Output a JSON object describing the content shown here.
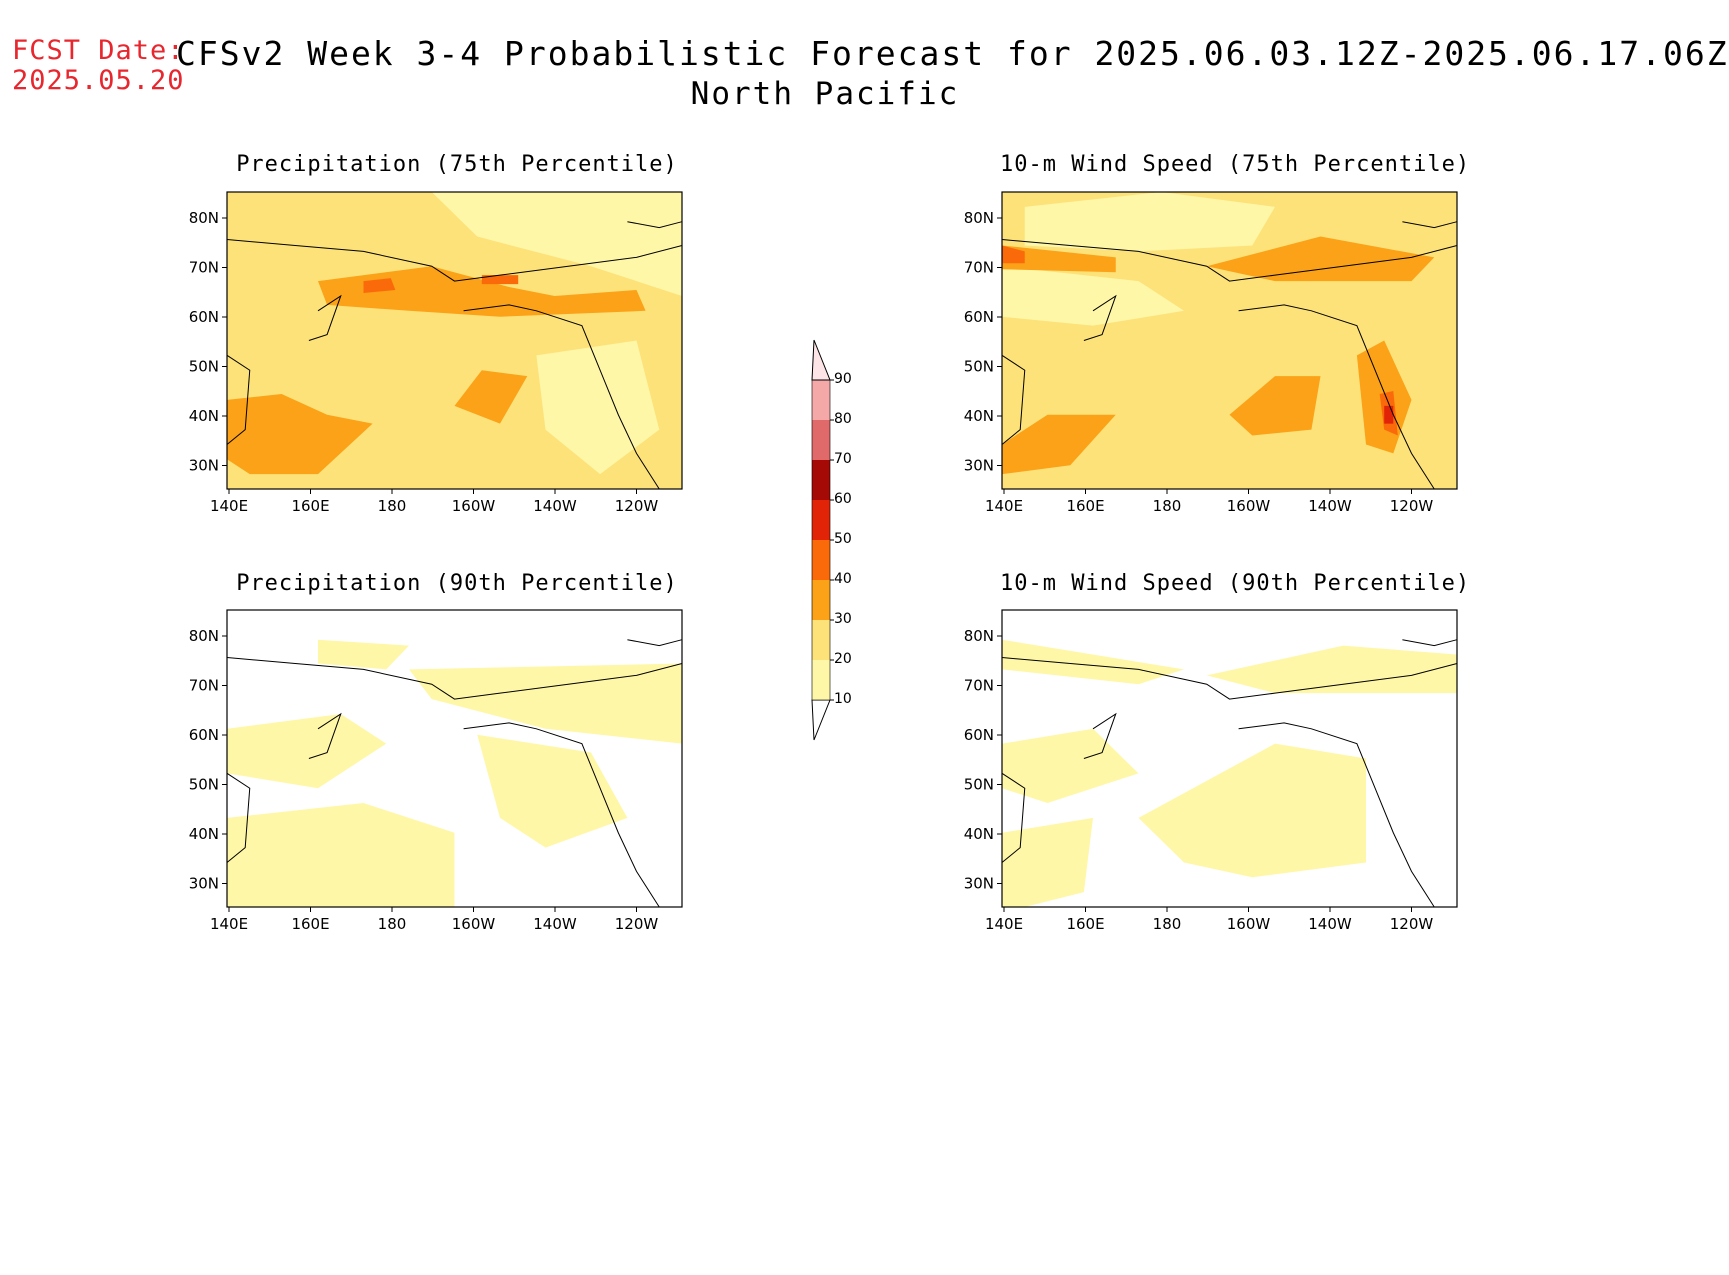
{
  "header": {
    "fcst_label": "FCST Date:",
    "fcst_date": "2025.05.20",
    "title": "CFSv2 Week 3-4 Probabilistic Forecast for 2025.06.03.12Z-2025.06.17.06Z",
    "region": "North Pacific"
  },
  "panels": [
    {
      "title": "Precipitation (75th Percentile)",
      "field": "precip75"
    },
    {
      "title": "10-m Wind Speed (75th Percentile)",
      "field": "wind75"
    },
    {
      "title": "Precipitation (90th Percentile)",
      "field": "precip90"
    },
    {
      "title": "10-m Wind Speed (90th Percentile)",
      "field": "wind90"
    }
  ],
  "axes": {
    "lat_labels": [
      "80N",
      "70N",
      "60N",
      "50N",
      "40N",
      "30N"
    ],
    "lon_labels": [
      "140E",
      "160E",
      "180",
      "160W",
      "140W",
      "120W"
    ]
  },
  "colorbar": {
    "levels": [
      "10",
      "20",
      "30",
      "40",
      "50",
      "60",
      "70",
      "80",
      "90"
    ],
    "colors": [
      "#fff7a8",
      "#fde27a",
      "#fba218",
      "#fb6a0a",
      "#e12408",
      "#a50a06",
      "#e06a6a",
      "#f4a8a8",
      "#fde4e6"
    ]
  }
}
